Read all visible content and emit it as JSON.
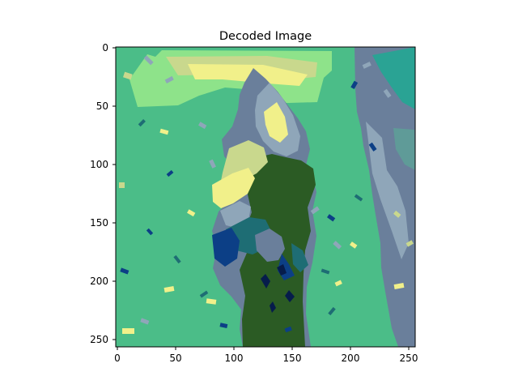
{
  "figure": {
    "title": "Decoded Image",
    "image_semantics": "decoded-image-heatmap",
    "colormap": "viridis-like posterized palette",
    "image_palette": [
      "#4bbd88",
      "#2b5b24",
      "#6a7f9b",
      "#8ee38a",
      "#f1f08a",
      "#0c3f86",
      "#8fa6b9",
      "#1e6d74",
      "#c9d88d"
    ]
  },
  "axes": {
    "x_ticks": [
      "0",
      "50",
      "100",
      "150",
      "200",
      "250"
    ],
    "y_ticks": [
      "0",
      "50",
      "100",
      "150",
      "200",
      "250"
    ]
  },
  "chart_data": {
    "type": "heatmap",
    "title": "Decoded Image",
    "xlabel": "",
    "ylabel": "",
    "xlim": [
      0,
      256
    ],
    "ylim": [
      256,
      0
    ],
    "x_ticks": [
      0,
      50,
      100,
      150,
      200,
      250
    ],
    "y_ticks": [
      0,
      50,
      100,
      150,
      200,
      250
    ],
    "grid": false
  }
}
